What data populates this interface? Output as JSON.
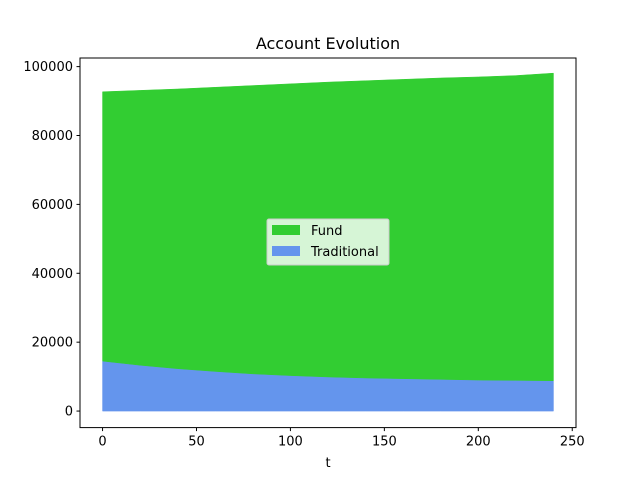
{
  "chart_data": {
    "type": "area",
    "stacked": true,
    "title": "Account Evolution",
    "xlabel": "t",
    "ylabel": "",
    "xlim": [
      -12,
      252
    ],
    "ylim": [
      -4800,
      102500
    ],
    "xticks": [
      0,
      50,
      100,
      150,
      200,
      250
    ],
    "yticks": [
      0,
      20000,
      40000,
      60000,
      80000,
      100000
    ],
    "grid": false,
    "legend_position": "center",
    "x": [
      0,
      20,
      40,
      60,
      80,
      100,
      120,
      140,
      160,
      180,
      200,
      220,
      240
    ],
    "series": [
      {
        "name": "Traditional",
        "color": "#6495ED",
        "values": [
          14500,
          13300,
          12300,
          11500,
          10800,
          10300,
          9900,
          9600,
          9400,
          9200,
          9000,
          8900,
          8800
        ]
      },
      {
        "name": "Fund",
        "color": "#32CD32",
        "values": [
          78200,
          79800,
          81200,
          82500,
          83700,
          84700,
          85600,
          86300,
          86900,
          87500,
          88000,
          88500,
          89300
        ]
      }
    ],
    "legend_order": [
      "Fund",
      "Traditional"
    ]
  }
}
